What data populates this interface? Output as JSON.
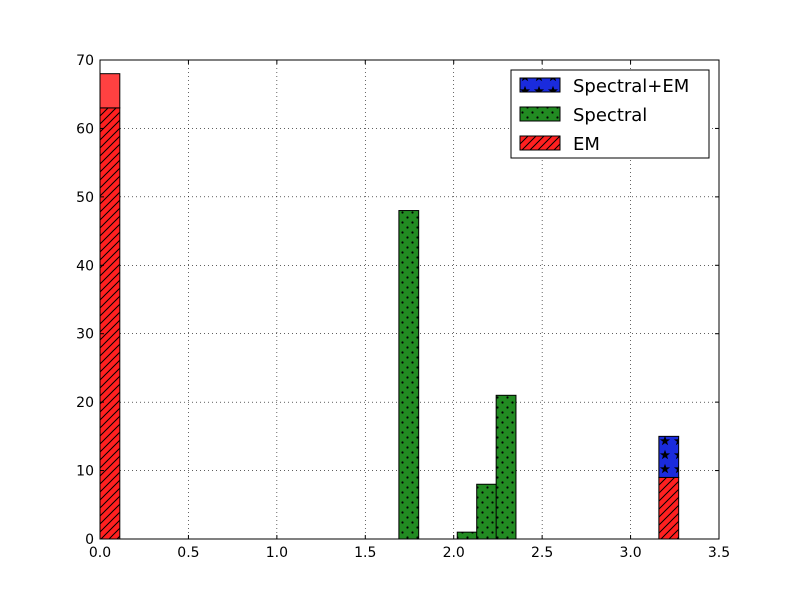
{
  "chart_data": {
    "type": "bar",
    "title": "",
    "xlabel": "",
    "ylabel": "",
    "xlim": [
      0.0,
      3.5
    ],
    "ylim": [
      0,
      70
    ],
    "xticks": [
      "0.0",
      "0.5",
      "1.0",
      "1.5",
      "2.0",
      "2.5",
      "3.0",
      "3.5"
    ],
    "yticks": [
      "0",
      "10",
      "20",
      "30",
      "40",
      "50",
      "60",
      "70"
    ],
    "grid": true,
    "stacked": true,
    "legend": {
      "placement": "top-right",
      "entries": [
        "Spectral+EM",
        "Spectral",
        "EM"
      ]
    },
    "bin_width": 0.112,
    "series": [
      {
        "name": "EM",
        "color": "#ff2020",
        "hatch": "diagonal",
        "bins": [
          {
            "x": 0.0,
            "value": 63
          },
          {
            "x": 3.16,
            "value": 9
          }
        ]
      },
      {
        "name": "Spectral",
        "color": "#228b22",
        "hatch": "dots",
        "bins": [
          {
            "x": 1.69,
            "value": 48
          },
          {
            "x": 2.02,
            "value": 1
          },
          {
            "x": 2.13,
            "value": 8
          },
          {
            "x": 2.24,
            "value": 21
          }
        ]
      },
      {
        "name": "Spectral+EM",
        "color": "#1a2bdd",
        "hatch": "stars",
        "bins": [
          {
            "x": 3.16,
            "value": 6
          }
        ]
      }
    ],
    "overlays": [
      {
        "series": "EM",
        "x": 0.0,
        "from": 63,
        "to": 68
      }
    ]
  }
}
